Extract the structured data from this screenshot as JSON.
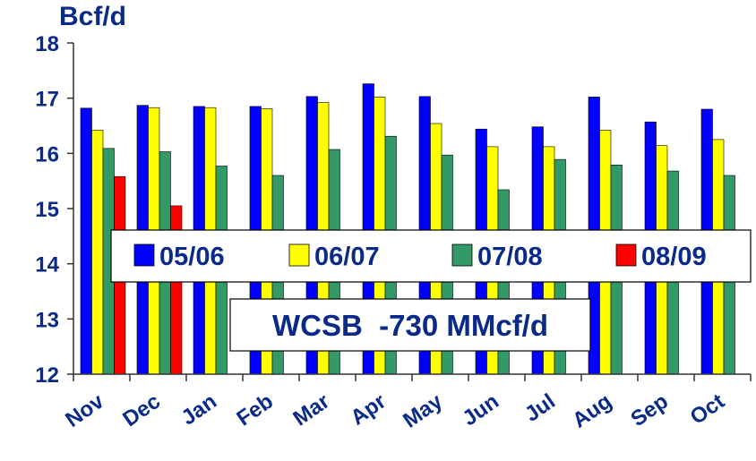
{
  "chart_data": {
    "type": "bar",
    "ylabel": "Bcf/d",
    "ylim": [
      12,
      18
    ],
    "yticks": [
      "12",
      "13",
      "14",
      "15",
      "16",
      "17",
      "18"
    ],
    "categories": [
      "Nov",
      "Dec",
      "Jan",
      "Feb",
      "Mar",
      "Apr",
      "May",
      "Jun",
      "Jul",
      "Aug",
      "Sep",
      "Oct"
    ],
    "series": [
      {
        "name": "05/06",
        "color": "#0000ff",
        "values": [
          16.82,
          16.87,
          16.85,
          16.85,
          17.03,
          17.26,
          17.03,
          16.44,
          16.48,
          17.02,
          16.57,
          16.8
        ]
      },
      {
        "name": "06/07",
        "color": "#ffff00",
        "values": [
          16.42,
          16.83,
          16.83,
          16.81,
          16.92,
          17.02,
          16.54,
          16.12,
          16.12,
          16.42,
          16.14,
          16.25
        ]
      },
      {
        "name": "07/08",
        "color": "#339966",
        "values": [
          16.09,
          16.03,
          15.77,
          15.6,
          16.07,
          16.31,
          15.97,
          15.34,
          15.89,
          15.79,
          15.68,
          15.6
        ]
      },
      {
        "name": "08/09",
        "color": "#ff0000",
        "values": [
          15.58,
          15.05,
          null,
          null,
          null,
          null,
          null,
          null,
          null,
          null,
          null,
          null
        ]
      }
    ],
    "grid": false,
    "legend_position": "center",
    "annotation": "WCSB  -730 MMcf/d"
  }
}
